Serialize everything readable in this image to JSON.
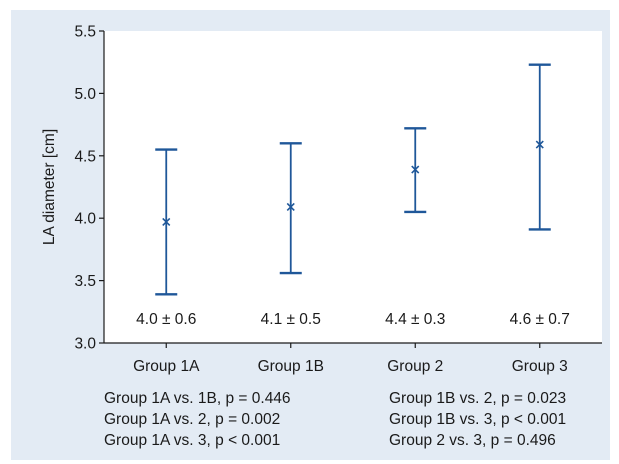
{
  "chart_data": {
    "type": "error_bar",
    "ylabel": "LA diameter [cm]",
    "ylim": [
      3.0,
      5.5
    ],
    "yticks": [
      3.0,
      3.5,
      4.0,
      4.5,
      5.0,
      5.5
    ],
    "ytick_labels": [
      "3.0",
      "3.5",
      "4.0",
      "4.5",
      "5.0",
      "5.5"
    ],
    "categories": [
      "Group 1A",
      "Group 1B",
      "Group 2",
      "Group 3"
    ],
    "points": [
      {
        "category": "Group 1A",
        "mean": 3.97,
        "upper": 4.55,
        "lower": 3.39,
        "label": "4.0 ± 0.6"
      },
      {
        "category": "Group 1B",
        "mean": 4.09,
        "upper": 4.6,
        "lower": 3.56,
        "label": "4.1 ± 0.5"
      },
      {
        "category": "Group 2",
        "mean": 4.39,
        "upper": 4.72,
        "lower": 4.05,
        "label": "4.4 ± 0.3"
      },
      {
        "category": "Group 3",
        "mean": 4.59,
        "upper": 5.23,
        "lower": 3.91,
        "label": "4.6 ± 0.7"
      }
    ],
    "grid": false,
    "marker": "x",
    "color": "#1f5799"
  },
  "comparisons": {
    "left": [
      "Group 1A vs. 1B, p = 0.446",
      "Group 1A vs. 2, p = 0.002",
      "Group 1A vs. 3, p < 0.001"
    ],
    "right": [
      "Group 1B vs. 2, p = 0.023",
      "Group 1B vs. 3, p < 0.001",
      "Group 2 vs. 3, p = 0.496"
    ]
  },
  "colors": {
    "panel_background": "#e3ebf4",
    "plot_background": "#ffffff",
    "axis": "#1a1a1a",
    "series": "#1f5799"
  }
}
